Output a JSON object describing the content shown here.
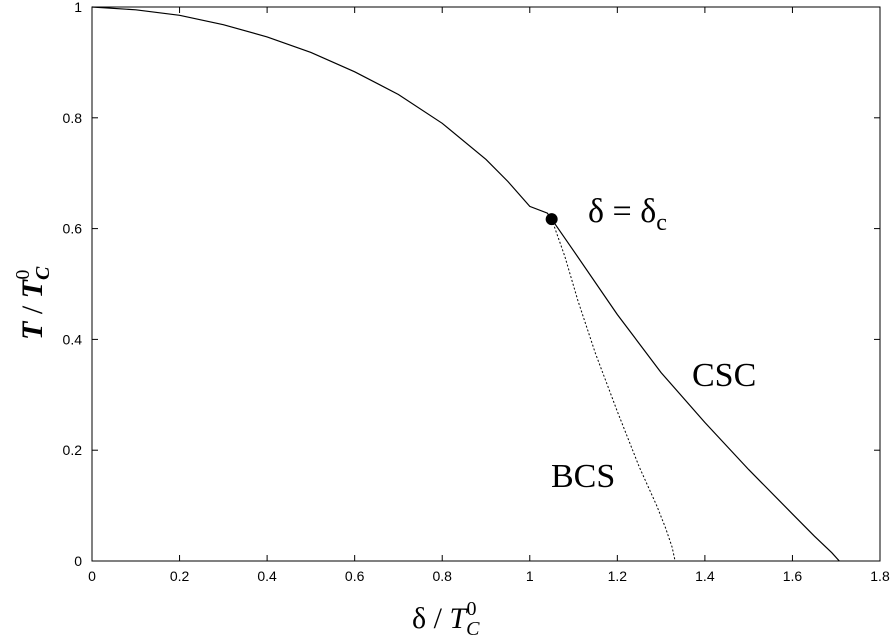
{
  "chart_data": {
    "type": "line",
    "title": "",
    "xlabel_symbol": "δ",
    "xlabel_sep": " / ",
    "xlabel_T": "T",
    "xlabel_sub": "C",
    "xlabel_sup": "0",
    "ylabel_T": "T",
    "ylabel_sep": " / ",
    "ylabel_T2": "T",
    "ylabel_sub": "C",
    "ylabel_sup": "0",
    "xlim": [
      0,
      1.8
    ],
    "ylim": [
      0,
      1
    ],
    "xticks": [
      "0",
      "0.2",
      "0.4",
      "0.6",
      "0.8",
      "1",
      "1.2",
      "1.4",
      "1.6",
      "1.8"
    ],
    "yticks": [
      "0",
      "0.2",
      "0.4",
      "0.6",
      "0.8",
      "1"
    ],
    "grid": false,
    "series": [
      {
        "name": "CSC",
        "style": "solid",
        "x": [
          0,
          0.1,
          0.2,
          0.3,
          0.4,
          0.5,
          0.6,
          0.7,
          0.8,
          0.9,
          0.95,
          1.0,
          1.04,
          1.05,
          1.1,
          1.2,
          1.3,
          1.4,
          1.5,
          1.6,
          1.65,
          1.69,
          1.707
        ],
        "y": [
          1.0,
          0.995,
          0.985,
          0.968,
          0.946,
          0.918,
          0.883,
          0.842,
          0.79,
          0.725,
          0.685,
          0.64,
          0.628,
          0.617,
          0.56,
          0.445,
          0.34,
          0.25,
          0.165,
          0.085,
          0.045,
          0.015,
          0
        ]
      },
      {
        "name": "BCS",
        "style": "dashed",
        "x": [
          1.05,
          1.08,
          1.11,
          1.15,
          1.2,
          1.25,
          1.29,
          1.31,
          1.325,
          1.332
        ],
        "y": [
          0.617,
          0.55,
          0.47,
          0.375,
          0.27,
          0.17,
          0.1,
          0.06,
          0.025,
          0
        ]
      }
    ],
    "annotations": {
      "critical_point": {
        "x": 1.05,
        "y": 0.617
      },
      "critical_label": "δ = δ",
      "critical_label_sub": "c",
      "csc_label": "CSC",
      "bcs_label": "BCS"
    }
  }
}
